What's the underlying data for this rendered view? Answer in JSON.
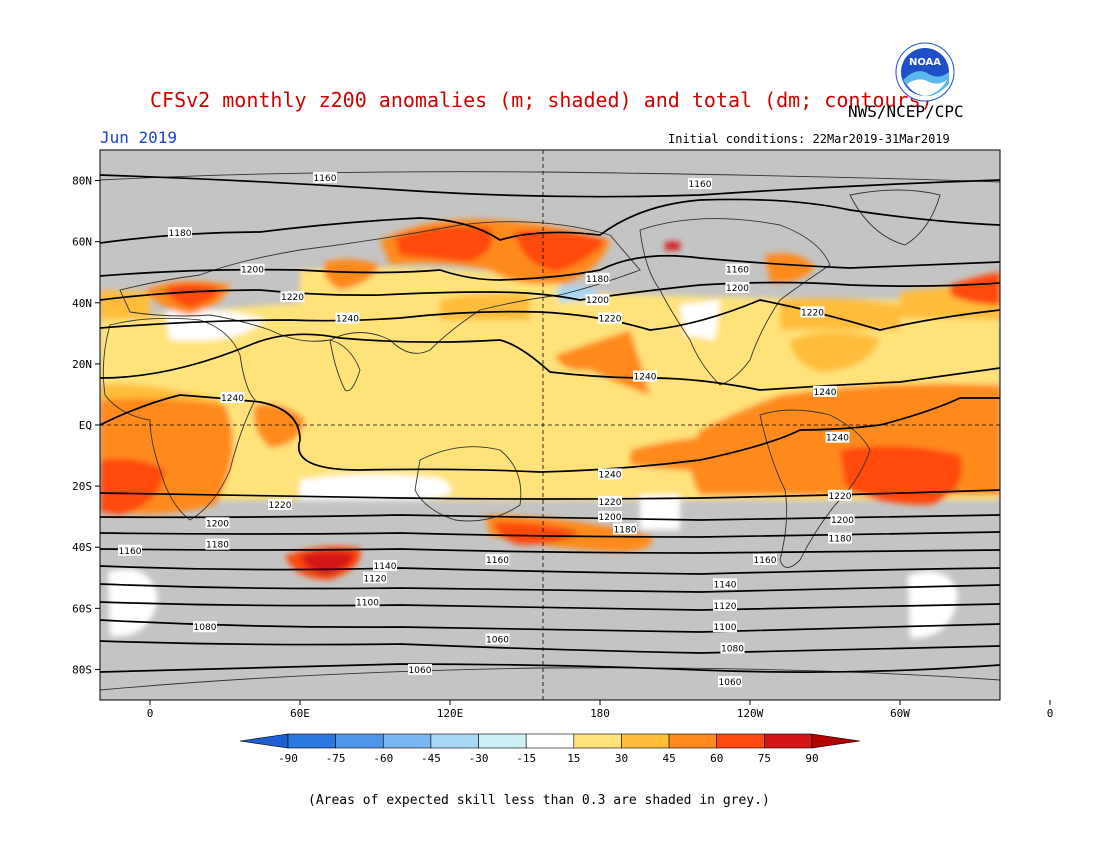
{
  "header": {
    "title": "CFSv2 monthly z200 anomalies (m; shaded) and total (dm; contours)",
    "agency": "NWS/NCEP/CPC",
    "month": "Jun 2019",
    "initial_conditions": "Initial conditions: 22Mar2019-31Mar2019",
    "logo_text": "NOAA"
  },
  "footnote": "(Areas of expected skill less than 0.3 are shaded in grey.)",
  "colors": {
    "title": "#d10000",
    "month": "#1a44d6",
    "grey_skill": "#c4c4c4",
    "land_outline": "#333333"
  },
  "map": {
    "lat_labels": [
      "80N",
      "60N",
      "40N",
      "20N",
      "EQ",
      "20S",
      "40S",
      "60S",
      "80S"
    ],
    "lon_labels": [
      "0",
      "60E",
      "120E",
      "180",
      "120W",
      "60W",
      "0"
    ],
    "contour_labels": [
      {
        "text": "1160",
        "lon": 70,
        "lat": 81
      },
      {
        "text": "1160",
        "lon": 220,
        "lat": 79
      },
      {
        "text": "1180",
        "lon": 12,
        "lat": 63
      },
      {
        "text": "1200",
        "lon": 41,
        "lat": 51
      },
      {
        "text": "1220",
        "lon": 57,
        "lat": 42
      },
      {
        "text": "1240",
        "lon": 79,
        "lat": 35
      },
      {
        "text": "1180",
        "lon": 179,
        "lat": 48
      },
      {
        "text": "1200",
        "lon": 179,
        "lat": 41
      },
      {
        "text": "1220",
        "lon": 184,
        "lat": 35
      },
      {
        "text": "1160",
        "lon": 235,
        "lat": 51
      },
      {
        "text": "1200",
        "lon": 235,
        "lat": 45
      },
      {
        "text": "1220",
        "lon": 265,
        "lat": 37
      },
      {
        "text": "1240",
        "lon": 198,
        "lat": 16
      },
      {
        "text": "1240",
        "lon": 270,
        "lat": 11
      },
      {
        "text": "1240",
        "lon": 275,
        "lat": -4
      },
      {
        "text": "1240",
        "lon": 33,
        "lat": 9
      },
      {
        "text": "1240",
        "lon": 184,
        "lat": -16
      },
      {
        "text": "1220",
        "lon": 184,
        "lat": -25
      },
      {
        "text": "1220",
        "lon": 52,
        "lat": -26
      },
      {
        "text": "1220",
        "lon": 276,
        "lat": -23
      },
      {
        "text": "1200",
        "lon": 184,
        "lat": -30
      },
      {
        "text": "1180",
        "lon": 190,
        "lat": -34
      },
      {
        "text": "1200",
        "lon": 27,
        "lat": -32
      },
      {
        "text": "1200",
        "lon": 277,
        "lat": -31
      },
      {
        "text": "1180",
        "lon": 27,
        "lat": -39
      },
      {
        "text": "1180",
        "lon": 276,
        "lat": -37
      },
      {
        "text": "1160",
        "lon": -8,
        "lat": -41
      },
      {
        "text": "1160",
        "lon": 139,
        "lat": -44
      },
      {
        "text": "1160",
        "lon": 246,
        "lat": -44
      },
      {
        "text": "1140",
        "lon": 94,
        "lat": -46
      },
      {
        "text": "1120",
        "lon": 90,
        "lat": -50
      },
      {
        "text": "1140",
        "lon": 230,
        "lat": -52
      },
      {
        "text": "1100",
        "lon": 87,
        "lat": -58
      },
      {
        "text": "1120",
        "lon": 230,
        "lat": -59
      },
      {
        "text": "1080",
        "lon": 22,
        "lat": -66
      },
      {
        "text": "1100",
        "lon": 230,
        "lat": -66
      },
      {
        "text": "1060",
        "lon": 139,
        "lat": -70
      },
      {
        "text": "1080",
        "lon": 233,
        "lat": -73
      },
      {
        "text": "1060",
        "lon": 108,
        "lat": -80
      },
      {
        "text": "1060",
        "lon": 232,
        "lat": -84
      }
    ]
  },
  "colorbar": {
    "labels": [
      "-90",
      "-75",
      "-60",
      "-45",
      "-30",
      "-15",
      "15",
      "30",
      "45",
      "60",
      "75",
      "90"
    ],
    "colors": [
      "#1e5fd6",
      "#2a78e0",
      "#4f96ea",
      "#7ab6f2",
      "#a8d8f5",
      "#cdf0f5",
      "#ffffff",
      "#ffe37a",
      "#ffbd3a",
      "#ff8a1e",
      "#ff4a0f",
      "#d41414",
      "#b00000"
    ]
  }
}
